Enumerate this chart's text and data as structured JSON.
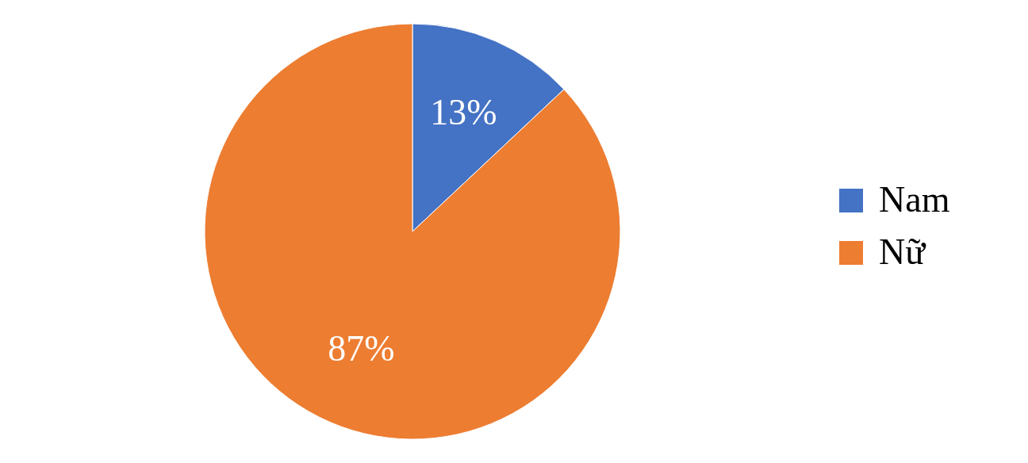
{
  "chart_data": {
    "type": "pie",
    "categories": [
      "Nam",
      "Nữ"
    ],
    "values": [
      13,
      87
    ],
    "colors": [
      "#4472c4",
      "#ed7d31"
    ],
    "value_labels": [
      "13%",
      "87%"
    ],
    "legend": "right"
  }
}
